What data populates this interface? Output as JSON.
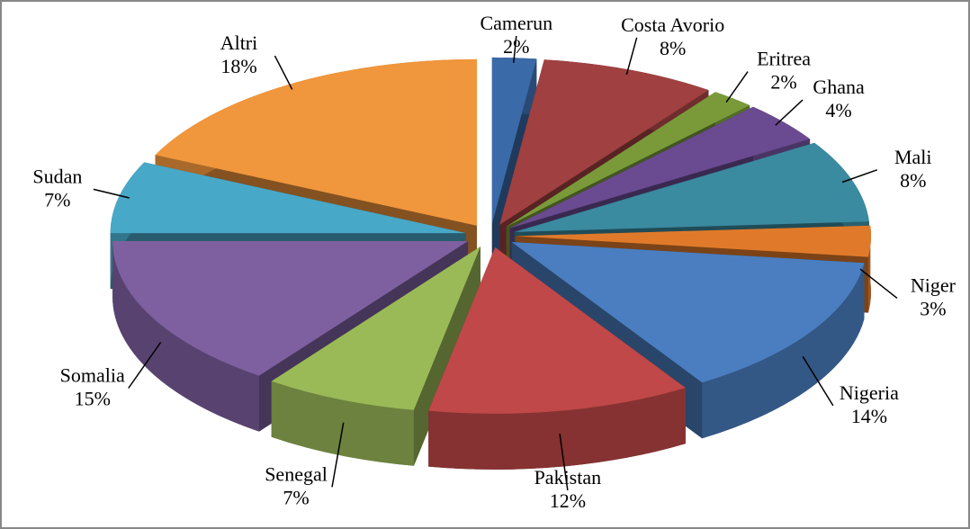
{
  "chart_data": {
    "type": "pie",
    "categories": [
      "Camerun",
      "Costa Avorio",
      "Eritrea",
      "Ghana",
      "Mali",
      "Niger",
      "Nigeria",
      "Pakistan",
      "Senegal",
      "Somalia",
      "Sudan",
      "Altri"
    ],
    "values": [
      2,
      8,
      2,
      4,
      8,
      3,
      14,
      12,
      7,
      15,
      7,
      18
    ],
    "value_labels": [
      "2%",
      "8%",
      "2%",
      "4%",
      "8%",
      "3%",
      "14%",
      "12%",
      "7%",
      "15%",
      "7%",
      "18%"
    ],
    "colors": [
      "#3a6aa8",
      "#a04040",
      "#7a9a3a",
      "#6a4a90",
      "#3a8aa0",
      "#e07a2a",
      "#4a7ec0",
      "#c04848",
      "#9aba58",
      "#7e60a0",
      "#48a8c8",
      "#f0963c"
    ]
  }
}
